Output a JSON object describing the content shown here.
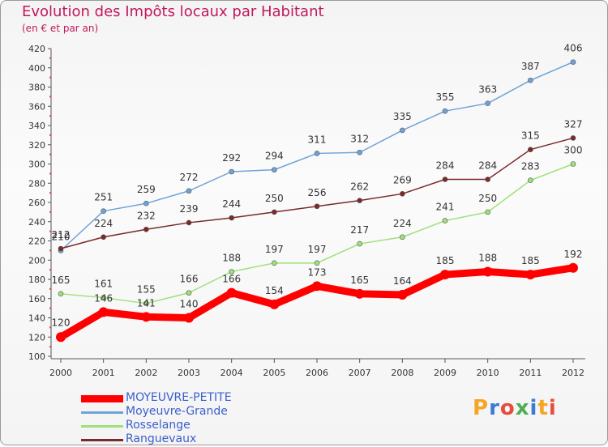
{
  "header": {
    "title": "Evolution des Impôts locaux par Habitant",
    "subtitle": "(en € et par an)"
  },
  "logo": {
    "text": "Proxiti",
    "colors": [
      "#f5a623",
      "#3a7bd5",
      "#e74c3c",
      "#4caf50",
      "#3a7bd5",
      "#f5a623",
      "#e74c3c"
    ]
  },
  "chart_data": {
    "type": "line",
    "x": [
      "2000",
      "2001",
      "2002",
      "2003",
      "2004",
      "2005",
      "2006",
      "2007",
      "2008",
      "2009",
      "2010",
      "2011",
      "2012"
    ],
    "ylim": [
      100,
      420
    ],
    "yticks": [
      100,
      120,
      140,
      160,
      180,
      200,
      220,
      240,
      260,
      280,
      300,
      320,
      340,
      360,
      380,
      400,
      420
    ],
    "grid": false,
    "legend_position": "bottom-left",
    "series": [
      {
        "name": "MOYEUVRE-PETITE",
        "color": "#ff0000",
        "values": [
          120,
          146,
          141,
          140,
          166,
          154,
          173,
          165,
          164,
          185,
          188,
          185,
          192
        ]
      },
      {
        "name": "Moyeuvre-Grande",
        "color": "#6fa3d8",
        "values": [
          210,
          251,
          259,
          272,
          292,
          294,
          311,
          312,
          335,
          355,
          363,
          387,
          406
        ]
      },
      {
        "name": "Rosselange",
        "color": "#9ee07a",
        "values": [
          165,
          161,
          155,
          166,
          188,
          197,
          197,
          217,
          224,
          241,
          250,
          283,
          300
        ]
      },
      {
        "name": "Ranguevaux",
        "color": "#7a2a2a",
        "values": [
          212,
          224,
          232,
          239,
          244,
          250,
          256,
          262,
          269,
          284,
          284,
          315,
          327
        ]
      }
    ]
  }
}
